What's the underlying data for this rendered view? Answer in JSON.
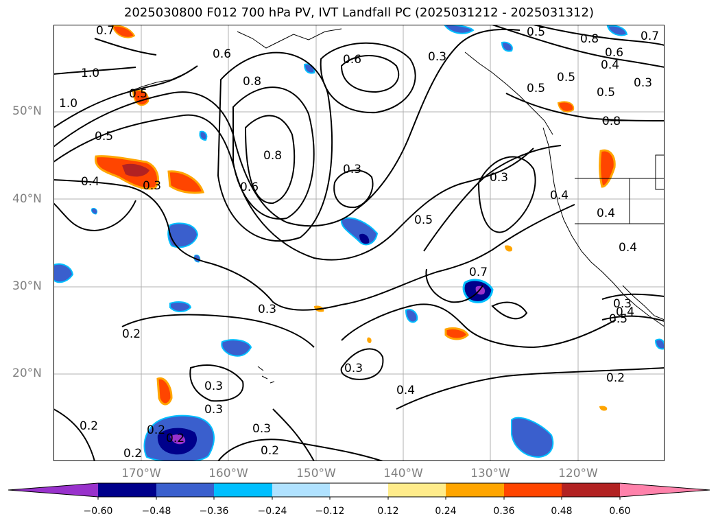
{
  "title": "2025030800 F012 700 hPa PV, IVT Landfall PC (2025031212 - 2025031312)",
  "lat_labels": [
    "50°N",
    "40°N",
    "30°N",
    "20°N"
  ],
  "lon_labels": [
    "170°W",
    "160°W",
    "150°W",
    "140°W",
    "130°W",
    "120°W"
  ],
  "contour_labels": [
    "0.7",
    "0.6",
    "0.5",
    "0.8",
    "0.6",
    "1.0",
    "0.8",
    "0.5",
    "0.6",
    "0.3",
    "0.5",
    "0.4",
    "0.3",
    "1.0",
    "0.5",
    "0.7",
    "0.8",
    "0.5",
    "0.5",
    "0.4",
    "0.8",
    "0.3",
    "0.3",
    "0.3",
    "0.5",
    "0.6",
    "0.4",
    "0.4",
    "0.4",
    "0.7",
    "0.4",
    "0.3",
    "0.2",
    "0.3",
    "0.3",
    "0.5",
    "0.2",
    "0.3",
    "0.3",
    "0.2",
    "0.4",
    "0.2",
    "0.2",
    "0.3",
    "0.2",
    "0.2"
  ],
  "colorbar": {
    "ticks": [
      "−0.60",
      "−0.48",
      "−0.36",
      "−0.24",
      "−0.12",
      "0.12",
      "0.24",
      "0.36",
      "0.48",
      "0.60"
    ],
    "colors": [
      "#9932cc",
      "#00008b",
      "#3a5fcd",
      "#00bfff",
      "#b0e2ff",
      "#ffffff",
      "#ffec8b",
      "#ffa500",
      "#ff4500",
      "#b22222",
      "#ff82ab"
    ]
  }
}
